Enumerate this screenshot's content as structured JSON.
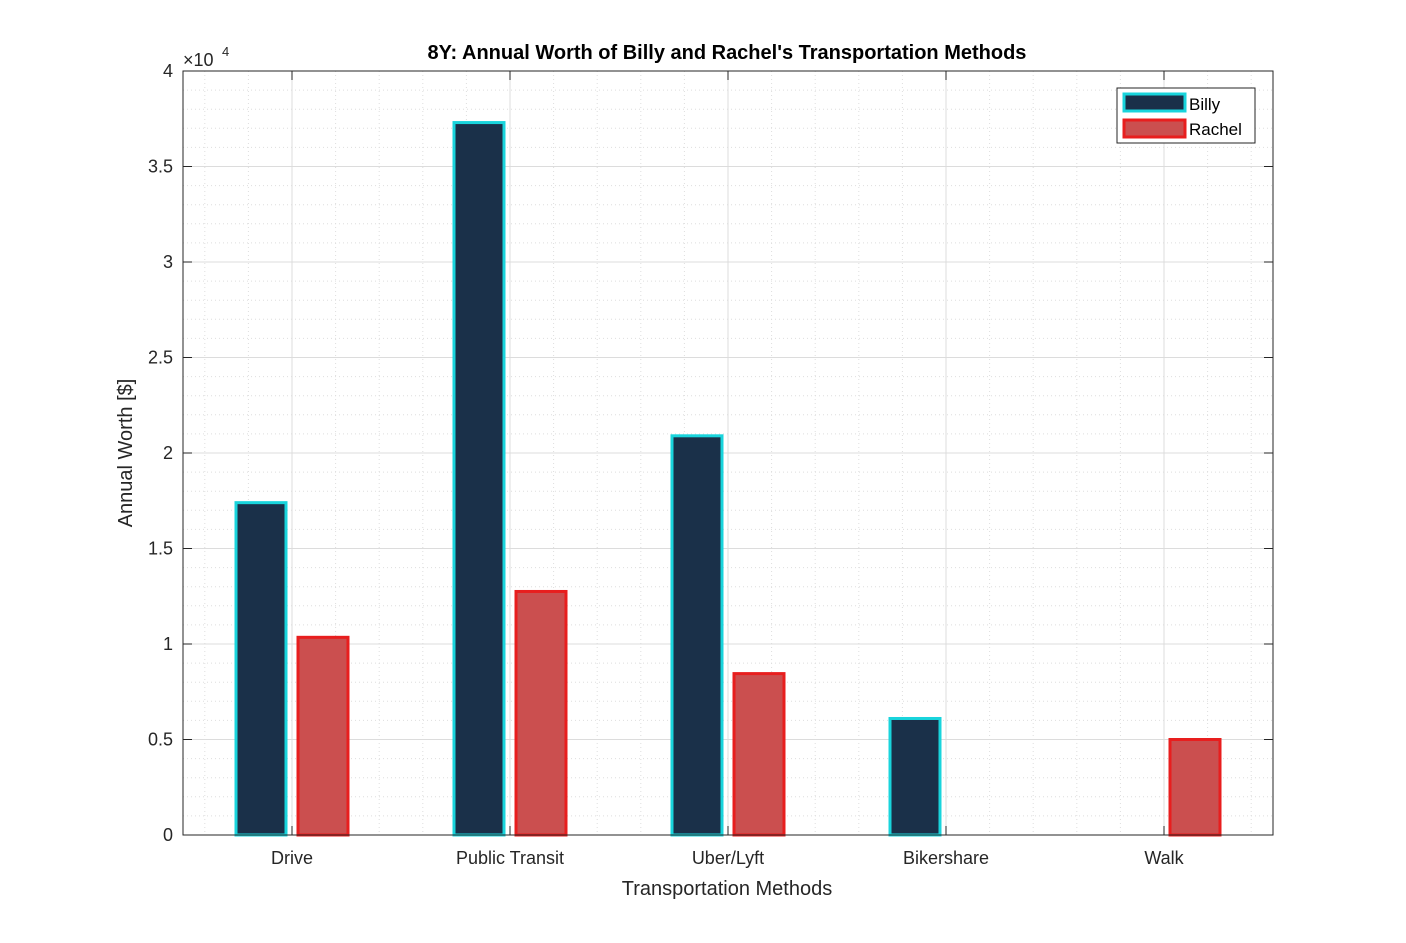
{
  "chart_data": {
    "type": "bar",
    "title": "8Y: Annual Worth of Billy and Rachel's Transportation Methods",
    "xlabel": "Transportation Methods",
    "ylabel": "Annual Worth [$]",
    "exponent_label": "×10",
    "exponent_power": "4",
    "categories": [
      "Drive",
      "Public Transit",
      "Uber/Lyft",
      "Bikershare",
      "Walk"
    ],
    "series": [
      {
        "name": "Billy",
        "values": [
          17400,
          37300,
          20900,
          6100,
          0
        ],
        "fill": "#1a3049",
        "edge": "#19d4dc"
      },
      {
        "name": "Rachel",
        "values": [
          10350,
          12750,
          8450,
          0,
          5000
        ],
        "fill": "#cb4f4f",
        "edge": "#e81e1e"
      }
    ],
    "ylim": [
      0,
      40000
    ],
    "yticks": [
      0,
      5000,
      10000,
      15000,
      20000,
      25000,
      30000,
      35000,
      40000
    ],
    "ytick_labels": [
      "0",
      "0.5",
      "1",
      "1.5",
      "2",
      "2.5",
      "3",
      "3.5",
      "4"
    ],
    "grid": true,
    "minor_grid": true,
    "legend_position": "top-right"
  }
}
